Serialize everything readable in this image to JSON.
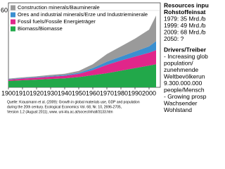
{
  "chart_data": {
    "type": "stacked-area",
    "x": [
      1900,
      1910,
      1920,
      1930,
      1940,
      1950,
      1960,
      1970,
      1980,
      1990,
      2000,
      2005
    ],
    "xlim": [
      1900,
      2008
    ],
    "xticks": [
      1900,
      1910,
      1920,
      1930,
      1940,
      1950,
      1960,
      1970,
      1980,
      1990,
      2000
    ],
    "ylim": [
      0,
      66
    ],
    "yticks": [
      60
    ],
    "legend": "upper left",
    "series": [
      {
        "name": "Biomass/Biomasse",
        "color": "#22a84a",
        "values": [
          5,
          5.5,
          6,
          6.5,
          7,
          8,
          9.5,
          11,
          13,
          15,
          17,
          18
        ]
      },
      {
        "name": "Fossil fuels/Fossile Energieträger",
        "color": "#e0268a",
        "values": [
          1,
          1.3,
          1.5,
          1.8,
          2,
          2.5,
          4,
          6.5,
          8,
          9,
          10,
          11
        ]
      },
      {
        "name": "Ores and industrial minerals/Erze und Industrieminerale",
        "color": "#3a8fd0",
        "values": [
          0.3,
          0.4,
          0.4,
          0.5,
          0.6,
          0.8,
          1.5,
          2.5,
          3,
          4,
          5,
          7
        ]
      },
      {
        "name": "Construction minerals/Bauminerale",
        "color": "#9a9a9a",
        "values": [
          0.5,
          0.6,
          0.7,
          0.9,
          1,
          1.5,
          3,
          6,
          8,
          10,
          13,
          20
        ]
      }
    ],
    "source": [
      "Quelle: Krausmann et al. (2009): Growth in global materials use, GDP and population",
      "during the 20th century. Ecological Economics Vol. 68, Nr. 10, 2696-2705,",
      "Version 1.2 (August 2011), www. uni-klu.ac.at/socec/inhalt/3133.htm"
    ],
    "side_panel": {
      "heading": [
        "Resources inpu",
        "Rohstoffeinsat"
      ],
      "facts": [
        "1979: 35 Mrd./b",
        "1999: 49 Mrd./b",
        "2009: 68 Mrd./b"
      ],
      "outlook": "2050: ?",
      "drivers_heading": "Drivers/Treiber",
      "drivers": [
        "- Increasing glob",
        "population/",
        "zunehmende",
        "Weltbevölkerun"
      ],
      "highlight": [
        "9.300.000.000",
        "people/Mensch"
      ],
      "drivers2": [
        "- Growing prosp",
        "Wachsender",
        "Wohlstand"
      ]
    }
  }
}
